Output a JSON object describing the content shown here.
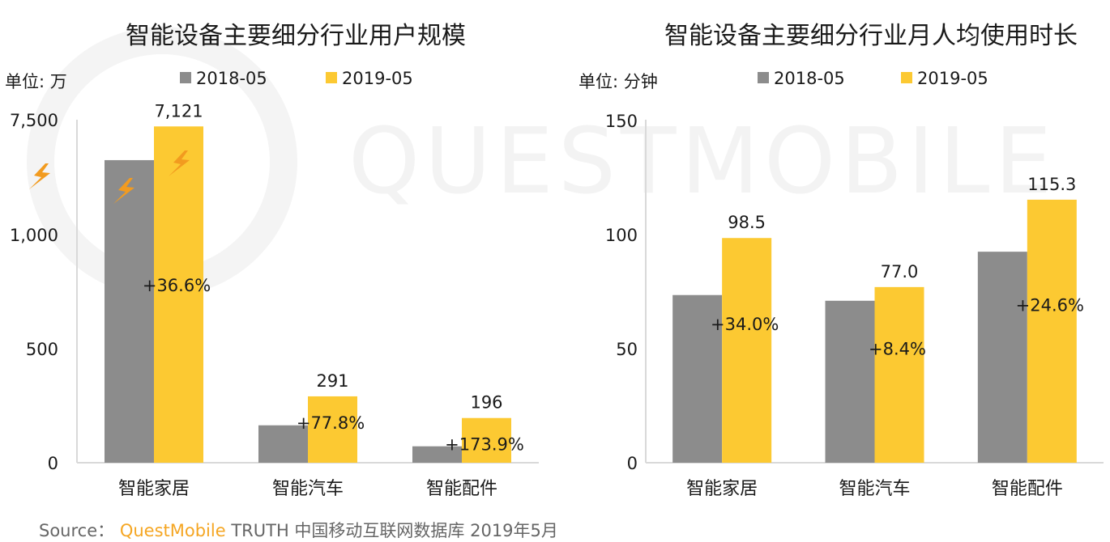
{
  "watermark": "QUESTMOBILE",
  "source": {
    "label": "Source：",
    "brand": "QuestMobile",
    "rest": "TRUTH 中国移动互联网数据库 2019年5月"
  },
  "colors": {
    "s2018": "#8c8c8c",
    "s2019": "#fcc932",
    "axis": "#d9d9d9",
    "text": "#1a1a1a",
    "bolt": "#f29b1f"
  },
  "chart_data": [
    {
      "type": "bar",
      "title": "智能设备主要细分行业用户规模",
      "unit_label": "单位: 万",
      "categories": [
        "智能家居",
        "智能汽车",
        "智能配件"
      ],
      "series": [
        {
          "name": "2018-05",
          "values": [
            5213,
            164,
            72
          ]
        },
        {
          "name": "2019-05",
          "values": [
            7121,
            291,
            196
          ],
          "labels": [
            "7,121",
            "291",
            "196"
          ]
        }
      ],
      "growth_labels": [
        "+36.6%",
        "+77.8%",
        "+173.9%"
      ],
      "y_ticks": [
        0,
        500,
        1000,
        7500
      ],
      "y_tick_labels": [
        "0",
        "500",
        "1,000",
        "7,500"
      ],
      "broken_axis": true,
      "ylim": [
        0,
        7500
      ],
      "legend_position": "top"
    },
    {
      "type": "bar",
      "title": "智能设备主要细分行业月人均使用时长",
      "unit_label": "单位: 分钟",
      "categories": [
        "智能家居",
        "智能汽车",
        "智能配件"
      ],
      "series": [
        {
          "name": "2018-05",
          "values": [
            73.5,
            71.0,
            92.5
          ]
        },
        {
          "name": "2019-05",
          "values": [
            98.5,
            77.0,
            115.3
          ],
          "labels": [
            "98.5",
            "77.0",
            "115.3"
          ]
        }
      ],
      "growth_labels": [
        "+34.0%",
        "+8.4%",
        "+24.6%"
      ],
      "y_ticks": [
        0,
        50,
        100,
        150
      ],
      "y_tick_labels": [
        "0",
        "50",
        "100",
        "150"
      ],
      "broken_axis": false,
      "ylim": [
        0,
        150
      ],
      "legend_position": "top"
    }
  ]
}
